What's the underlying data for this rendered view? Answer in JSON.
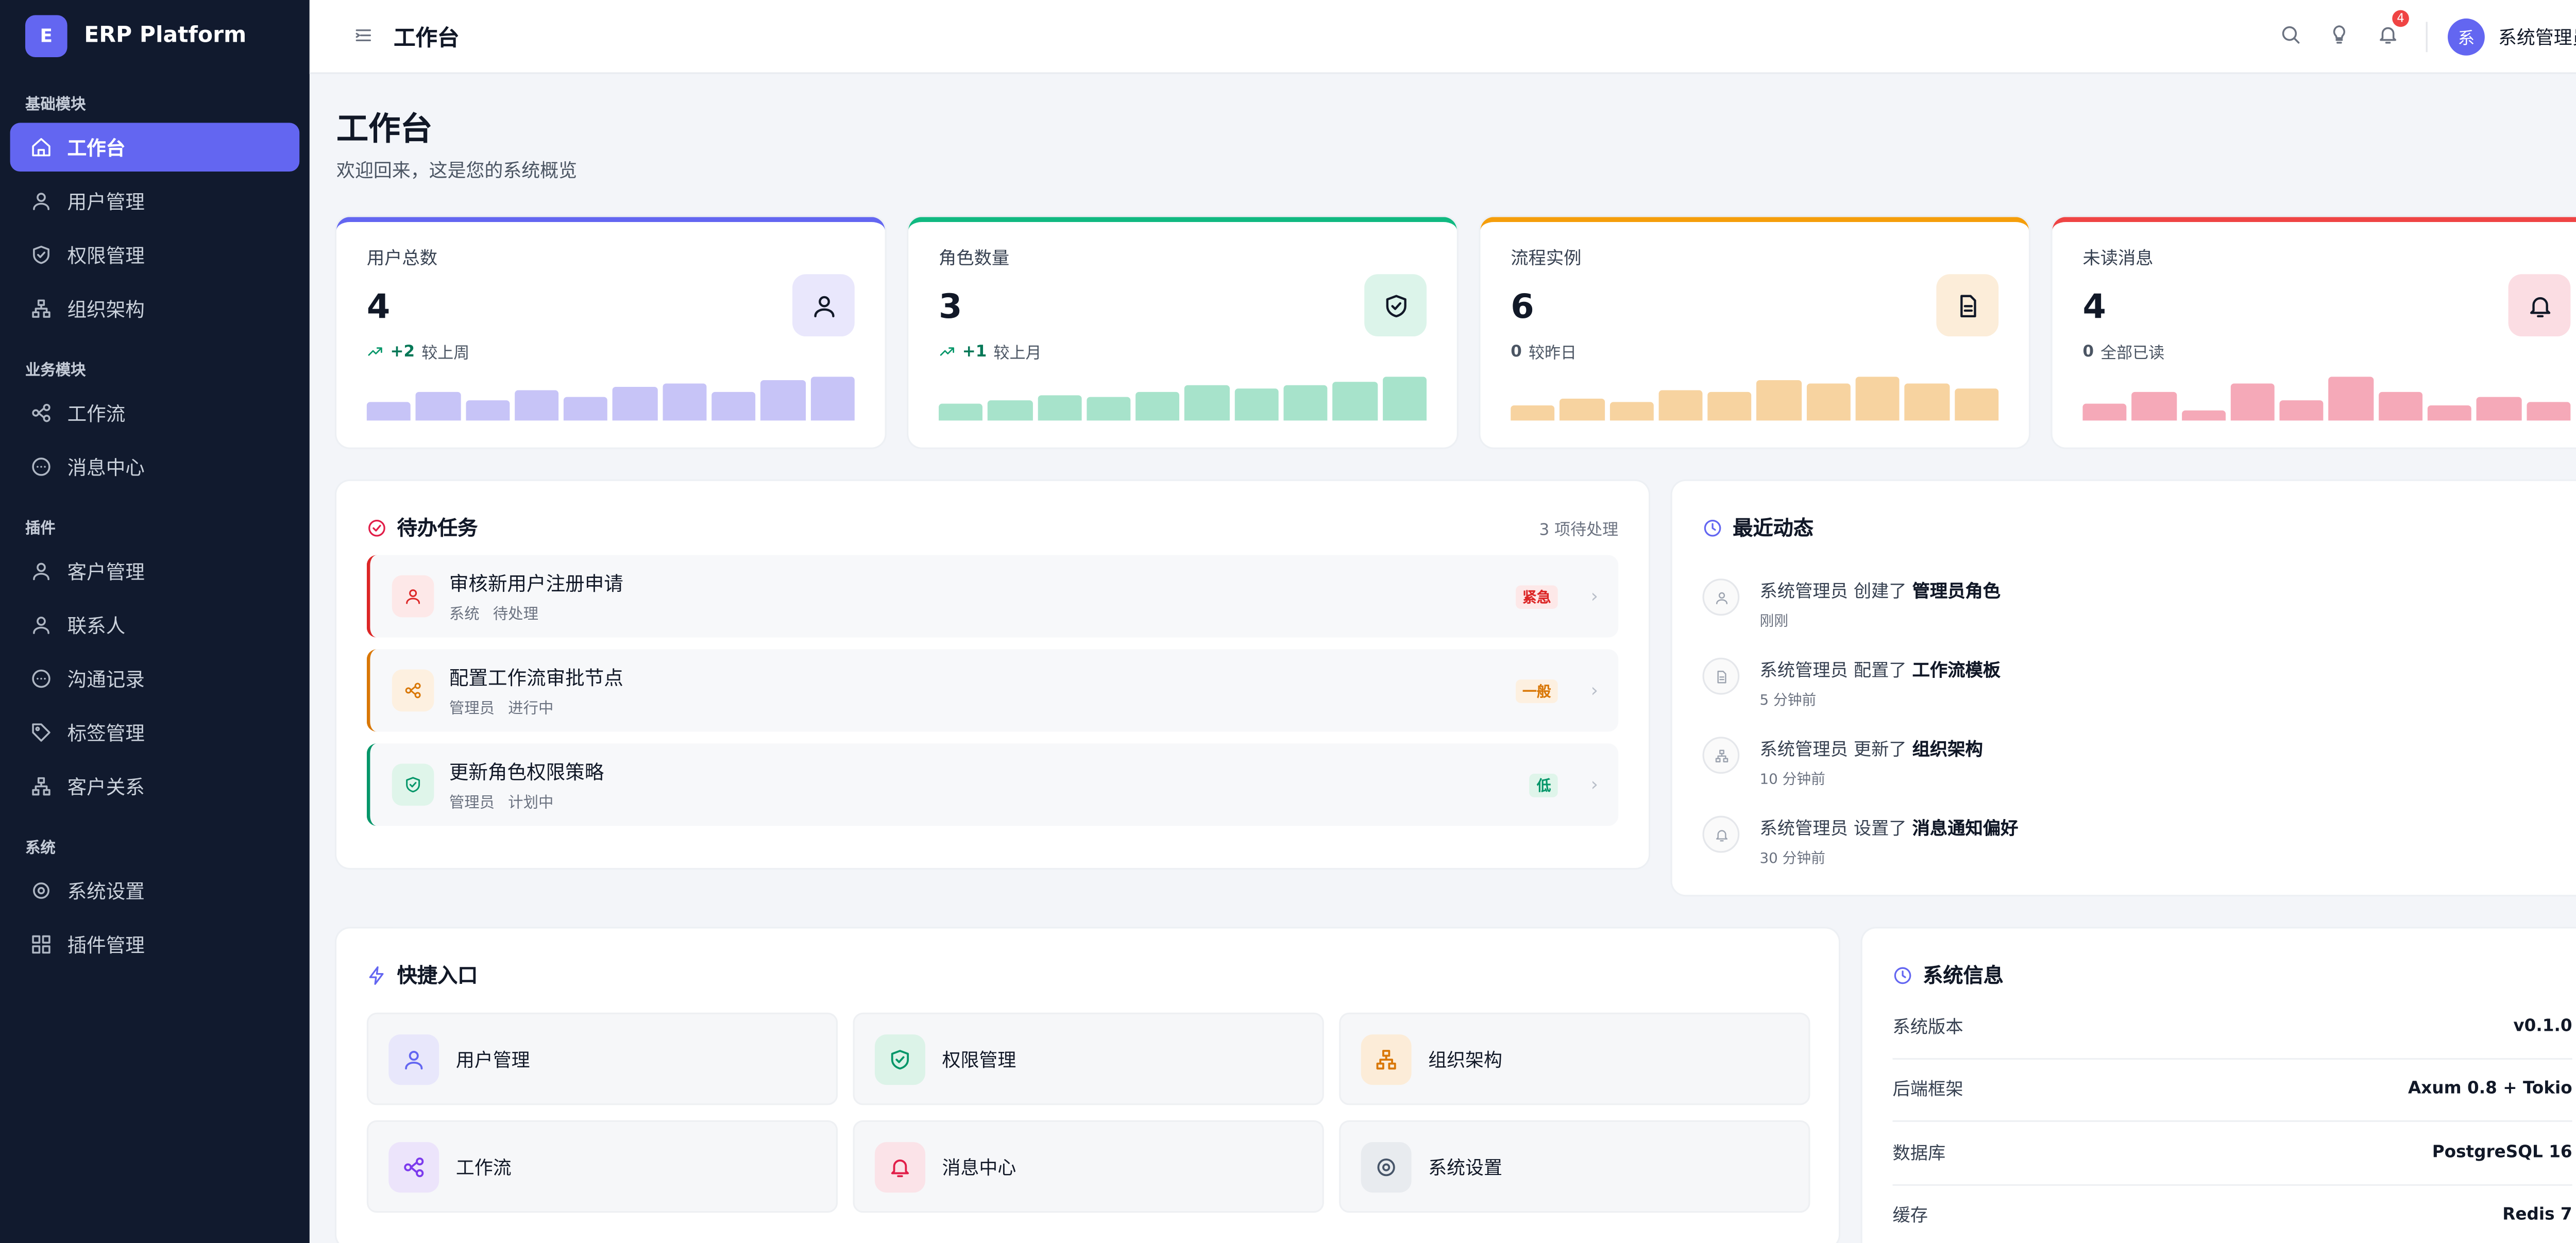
{
  "sidebar": {
    "brand_icon": "E",
    "brand": "ERP Platform",
    "groups": [
      {
        "title": "基础模块",
        "items": [
          "工作台",
          "用户管理",
          "权限管理",
          "组织架构"
        ]
      },
      {
        "title": "业务模块",
        "items": [
          "工作流",
          "消息中心"
        ]
      },
      {
        "title": "插件",
        "items": [
          "客户管理",
          "联系人",
          "沟通记录",
          "标签管理",
          "客户关系"
        ]
      },
      {
        "title": "系统",
        "items": [
          "系统设置",
          "插件管理"
        ]
      }
    ]
  },
  "header": {
    "title": "工作台",
    "notification_count": 4,
    "avatar": "系",
    "user": "系统管理员"
  },
  "page": {
    "title": "工作台",
    "subtitle": "欢迎回来，这是您的系统概览"
  },
  "stats": [
    {
      "label": "用户总数",
      "value": 4,
      "trend": "+2",
      "trend_text": "较上周",
      "color": "#6366f1",
      "bar_color": "#c7c4f7",
      "bars": [
        40,
        62,
        44,
        68,
        52,
        74,
        82,
        64,
        90,
        96
      ]
    },
    {
      "label": "角色数量",
      "value": 3,
      "trend": "+1",
      "trend_text": "较上月",
      "color": "#10b981",
      "bar_color": "#a7e3cb",
      "bars": [
        36,
        44,
        56,
        52,
        64,
        76,
        72,
        78,
        86,
        96
      ]
    },
    {
      "label": "流程实例",
      "value": 6,
      "trend": "0",
      "trend_text": "较昨日",
      "color": "#f59e0b",
      "bar_color": "#f7d3a0",
      "bars": [
        32,
        48,
        40,
        66,
        62,
        86,
        78,
        94,
        80,
        68
      ]
    },
    {
      "label": "未读消息",
      "value": 4,
      "trend": "0",
      "trend_text": "全部已读",
      "color": "#ef4444",
      "bar_color": "#f5a9b8",
      "bars": [
        36,
        64,
        24,
        80,
        44,
        96,
        62,
        32,
        52,
        40
      ]
    }
  ],
  "tasks": {
    "title": "待办任务",
    "count": "3 项待处理",
    "items": [
      {
        "title": "审核新用户注册申请",
        "owner": "系统",
        "status": "待处理",
        "priority": "紧急",
        "color": "#dc2626",
        "bg": "#fde8e8"
      },
      {
        "title": "配置工作流审批节点",
        "owner": "管理员",
        "status": "进行中",
        "priority": "一般",
        "color": "#d97706",
        "bg": "#fdf0e0"
      },
      {
        "title": "更新角色权限策略",
        "owner": "管理员",
        "status": "计划中",
        "priority": "低",
        "color": "#059669",
        "bg": "#dff5ea"
      }
    ]
  },
  "activity": {
    "title": "最近动态",
    "items": [
      {
        "actor": "系统管理员",
        "action": "创建了",
        "target": "管理员角色",
        "time": "刚刚"
      },
      {
        "actor": "系统管理员",
        "action": "配置了",
        "target": "工作流模板",
        "time": "5 分钟前"
      },
      {
        "actor": "系统管理员",
        "action": "更新了",
        "target": "组织架构",
        "time": "10 分钟前"
      },
      {
        "actor": "系统管理员",
        "action": "设置了",
        "target": "消息通知偏好",
        "time": "30 分钟前"
      }
    ]
  },
  "quick": {
    "title": "快捷入口",
    "items": [
      {
        "label": "用户管理",
        "color": "#6366f1",
        "bg": "#e8e7fb"
      },
      {
        "label": "权限管理",
        "color": "#059669",
        "bg": "#dcf3e8"
      },
      {
        "label": "组织架构",
        "color": "#d97706",
        "bg": "#fcecd8"
      },
      {
        "label": "工作流",
        "color": "#7c3aed",
        "bg": "#ece4fb"
      },
      {
        "label": "消息中心",
        "color": "#e11d48",
        "bg": "#fbe3e8"
      },
      {
        "label": "系统设置",
        "color": "#475569",
        "bg": "#e8ebef"
      }
    ]
  },
  "sysinfo": {
    "title": "系统信息",
    "rows": [
      [
        "系统版本",
        "v0.1.0"
      ],
      [
        "后端框架",
        "Axum 0.8 + Tokio"
      ],
      [
        "数据库",
        "PostgreSQL 16"
      ],
      [
        "缓存",
        "Redis 7"
      ]
    ]
  }
}
